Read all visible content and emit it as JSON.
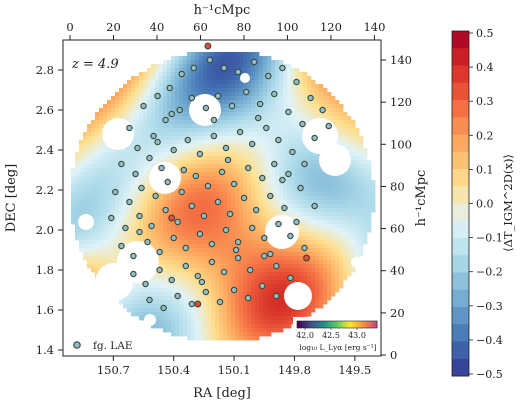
{
  "chart_data": {
    "type": "scatter",
    "background": "smoothed transmission-fluctuation map, blue (negative) to red (positive), with white masked holes",
    "redshift_label": "z = 4.9",
    "xlabel": "RA [deg]",
    "ylabel": "DEC [deg]",
    "top_xlabel": "h⁻¹cMpc",
    "right_ylabel": "h⁻¹cMpc",
    "x_ticks": [
      "150.7",
      "150.4",
      "150.1",
      "149.8",
      "149.5"
    ],
    "y_ticks": [
      "1.4",
      "1.6",
      "1.8",
      "2.0",
      "2.2",
      "2.4",
      "2.6",
      "2.8"
    ],
    "top_ticks": [
      "0",
      "20",
      "40",
      "60",
      "80",
      "100",
      "120",
      "140"
    ],
    "right_ticks": [
      "0",
      "20",
      "40",
      "60",
      "80",
      "100",
      "120",
      "140"
    ],
    "xlim": [
      150.95,
      149.37
    ],
    "ylim": [
      1.37,
      2.95
    ],
    "colorbar": {
      "label": "⟨ΔT_IGM^2D(x)⟩",
      "min": -0.5,
      "max": 0.5,
      "ticks": [
        "0.5",
        "0.4",
        "0.3",
        "0.2",
        "0.1",
        "0.0",
        "−0.1",
        "−0.2",
        "−0.3",
        "−0.4",
        "−0.5"
      ],
      "colors": [
        "#313695",
        "#4575b4",
        "#74add1",
        "#abd9e9",
        "#e0f3f8",
        "#fee090",
        "#fdae61",
        "#f46d43",
        "#d73027",
        "#a50026"
      ]
    },
    "inset_colorbar": {
      "label": "log₁₀ L_Lyα [erg s⁻¹]",
      "ticks": [
        "42.0",
        "42.5",
        "43.0"
      ],
      "colors": [
        "#440154",
        "#3b528b",
        "#21918c",
        "#5ec962",
        "#fde725",
        "#f89540",
        "#cc4778"
      ]
    },
    "legend": {
      "label": "fg. LAE",
      "position": "lower-left"
    },
    "series": [
      {
        "name": "fg. LAE",
        "points": [
          [
            150.62,
            2.51
          ],
          [
            150.55,
            2.62
          ],
          [
            150.48,
            2.67
          ],
          [
            150.42,
            2.71
          ],
          [
            150.36,
            2.78
          ],
          [
            150.3,
            2.81
          ],
          [
            150.22,
            2.85
          ],
          [
            150.15,
            2.81
          ],
          [
            150.08,
            2.79
          ],
          [
            150.0,
            2.84
          ],
          [
            149.93,
            2.77
          ],
          [
            149.86,
            2.81
          ],
          [
            149.79,
            2.74
          ],
          [
            149.72,
            2.66
          ],
          [
            149.66,
            2.6
          ],
          [
            150.58,
            2.41
          ],
          [
            150.5,
            2.47
          ],
          [
            150.44,
            2.55
          ],
          [
            150.37,
            2.6
          ],
          [
            150.31,
            2.66
          ],
          [
            150.24,
            2.61
          ],
          [
            150.18,
            2.67
          ],
          [
            150.11,
            2.62
          ],
          [
            150.04,
            2.69
          ],
          [
            149.97,
            2.63
          ],
          [
            149.9,
            2.68
          ],
          [
            149.83,
            2.59
          ],
          [
            149.76,
            2.53
          ],
          [
            149.7,
            2.46
          ],
          [
            149.63,
            2.52
          ],
          [
            150.66,
            2.33
          ],
          [
            150.59,
            2.28
          ],
          [
            150.52,
            2.36
          ],
          [
            150.46,
            2.31
          ],
          [
            150.4,
            2.4
          ],
          [
            150.33,
            2.45
          ],
          [
            150.27,
            2.38
          ],
          [
            150.2,
            2.47
          ],
          [
            150.14,
            2.41
          ],
          [
            150.07,
            2.49
          ],
          [
            150.01,
            2.43
          ],
          [
            149.94,
            2.51
          ],
          [
            149.88,
            2.45
          ],
          [
            149.81,
            2.39
          ],
          [
            149.75,
            2.33
          ],
          [
            150.69,
            2.19
          ],
          [
            150.62,
            2.14
          ],
          [
            150.56,
            2.21
          ],
          [
            150.49,
            2.17
          ],
          [
            150.43,
            2.24
          ],
          [
            150.36,
            2.19
          ],
          [
            150.29,
            2.27
          ],
          [
            150.23,
            2.22
          ],
          [
            150.16,
            2.29
          ],
          [
            150.1,
            2.23
          ],
          [
            150.03,
            2.31
          ],
          [
            149.96,
            2.26
          ],
          [
            149.9,
            2.33
          ],
          [
            149.83,
            2.28
          ],
          [
            149.77,
            2.21
          ],
          [
            150.71,
            2.06
          ],
          [
            150.64,
            2.01
          ],
          [
            150.57,
            2.07
          ],
          [
            150.51,
            2.02
          ],
          [
            150.44,
            2.1
          ],
          [
            150.38,
            2.04
          ],
          [
            150.31,
            2.12
          ],
          [
            150.25,
            2.07
          ],
          [
            150.18,
            2.14
          ],
          [
            150.12,
            2.08
          ],
          [
            150.05,
            2.16
          ],
          [
            149.99,
            2.1
          ],
          [
            149.92,
            2.17
          ],
          [
            149.85,
            2.11
          ],
          [
            149.79,
            2.04
          ],
          [
            150.66,
            1.92
          ],
          [
            150.6,
            1.87
          ],
          [
            150.53,
            1.94
          ],
          [
            150.47,
            1.89
          ],
          [
            150.4,
            1.96
          ],
          [
            150.34,
            1.91
          ],
          [
            150.27,
            1.98
          ],
          [
            150.21,
            1.93
          ],
          [
            150.14,
            2.0
          ],
          [
            150.08,
            1.94
          ],
          [
            150.01,
            2.01
          ],
          [
            149.95,
            1.96
          ],
          [
            149.88,
            2.03
          ],
          [
            149.82,
            1.97
          ],
          [
            149.75,
            1.91
          ],
          [
            150.6,
            1.78
          ],
          [
            150.54,
            1.73
          ],
          [
            150.47,
            1.8
          ],
          [
            150.41,
            1.75
          ],
          [
            150.34,
            1.82
          ],
          [
            150.28,
            1.77
          ],
          [
            150.21,
            1.84
          ],
          [
            150.15,
            1.79
          ],
          [
            150.08,
            1.86
          ],
          [
            150.02,
            1.8
          ],
          [
            149.95,
            1.87
          ],
          [
            149.89,
            1.82
          ],
          [
            149.82,
            1.76
          ],
          [
            150.52,
            1.65
          ],
          [
            150.45,
            1.61
          ],
          [
            150.38,
            1.67
          ],
          [
            150.31,
            1.63
          ],
          [
            150.24,
            1.69
          ],
          [
            150.17,
            1.64
          ],
          [
            150.1,
            1.7
          ],
          [
            150.03,
            1.66
          ],
          [
            149.96,
            1.72
          ],
          [
            149.89,
            1.67
          ],
          [
            150.41,
            2.58
          ],
          [
            150.2,
            2.55
          ],
          [
            149.98,
            2.56
          ],
          [
            149.86,
            2.25
          ],
          [
            150.57,
            1.99
          ],
          [
            150.26,
            1.74
          ],
          [
            150.13,
            2.35
          ],
          [
            149.7,
            2.12
          ],
          [
            150.48,
            2.44
          ],
          [
            150.09,
            1.9
          ],
          [
            149.92,
            1.88
          ],
          [
            150.35,
            2.3
          ]
        ]
      },
      {
        "name": "",
        "points": [
          [
            150.23,
            2.92
          ],
          [
            150.41,
            2.06
          ],
          [
            149.74,
            1.86
          ],
          [
            150.28,
            1.63
          ]
        ]
      }
    ]
  }
}
